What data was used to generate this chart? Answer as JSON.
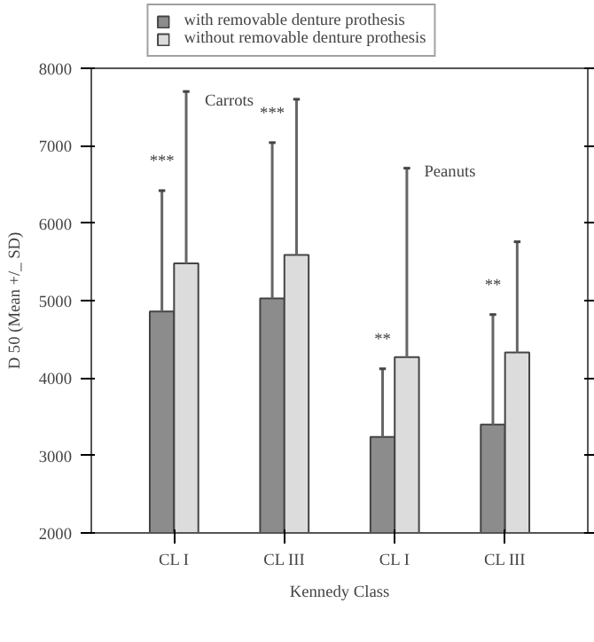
{
  "chart_data": {
    "type": "bar",
    "xlabel": "Kennedy Class",
    "ylabel": "D 50 (Mean +/_ SD)",
    "categories": [
      "CL I",
      "CL III",
      "CL I",
      "CL III"
    ],
    "series": [
      {
        "name": "with removable denture prothesis",
        "color": "#8c8c8c",
        "values": [
          4860,
          5030,
          3240,
          3400
        ],
        "errors": [
          [
            4860,
            6420
          ],
          [
            5030,
            7040
          ],
          [
            3240,
            4120
          ],
          [
            3400,
            4820
          ]
        ]
      },
      {
        "name": "without removable denture prothesis",
        "color": "#dcdcdc",
        "values": [
          5480,
          5590,
          4270,
          4330
        ],
        "errors": [
          [
            5480,
            7700
          ],
          [
            5590,
            7600
          ],
          [
            4270,
            6710
          ],
          [
            4330,
            5760
          ]
        ]
      }
    ],
    "ylim": [
      2000,
      8000
    ],
    "yticks": [
      2000,
      3000,
      4000,
      5000,
      6000,
      7000,
      8000
    ],
    "annotations": [
      "Carrots",
      "Peanuts",
      "***",
      "***",
      "**",
      "**"
    ],
    "legend": "top",
    "grid": false
  }
}
